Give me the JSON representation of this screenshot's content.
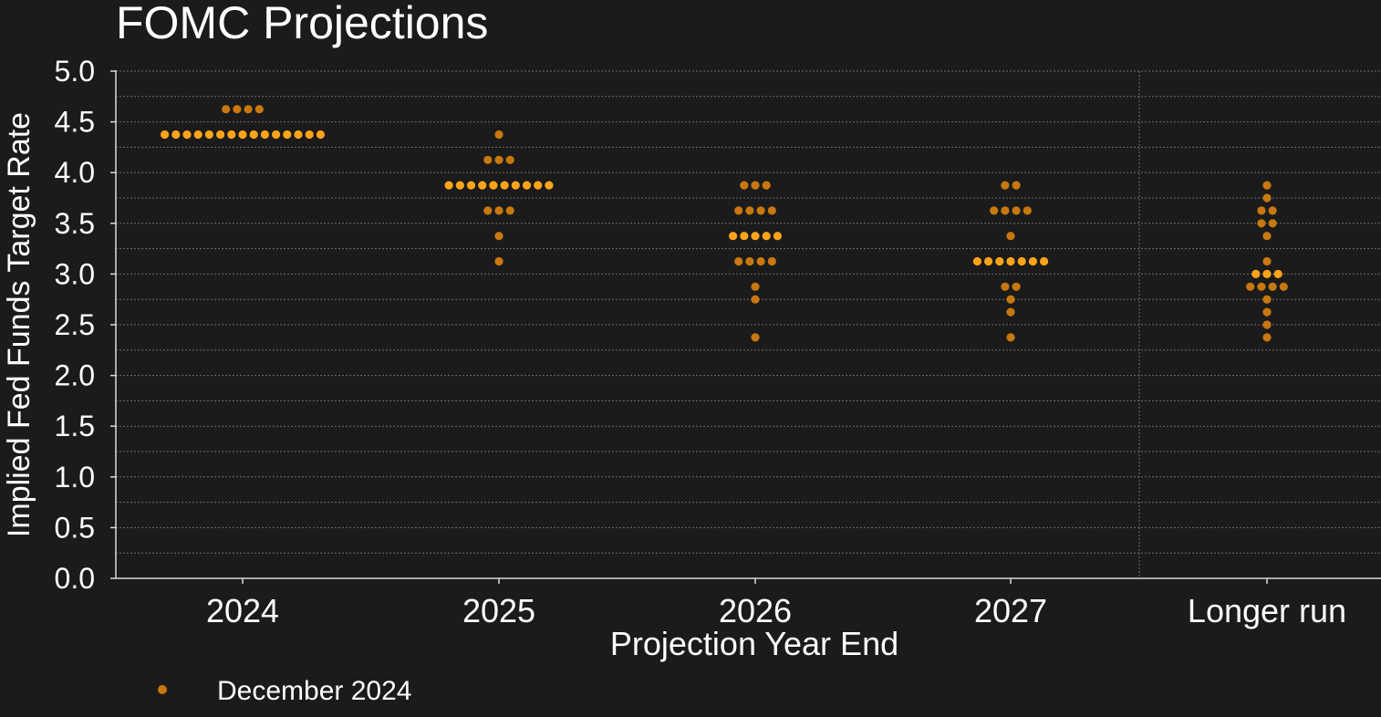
{
  "chart_data": {
    "type": "scatter",
    "title": "FOMC Projections",
    "xlabel": "Projection Year End",
    "ylabel": "Implied Fed Funds Target Rate",
    "categories": [
      "2024",
      "2025",
      "2026",
      "2027",
      "Longer run"
    ],
    "ylim": [
      0,
      5
    ],
    "yticks": [
      "0.0",
      "0.5",
      "1.0",
      "1.5",
      "2.0",
      "2.5",
      "3.0",
      "3.5",
      "4.0",
      "4.5",
      "5.0"
    ],
    "grid": true,
    "legend_position": "bottom-left",
    "series": [
      {
        "name": "December 2024",
        "color": "#c8780f",
        "median_color": "#ffa31a",
        "points": [
          {
            "category": "2024",
            "y": 4.625,
            "count": 4,
            "median": false
          },
          {
            "category": "2024",
            "y": 4.375,
            "count": 15,
            "median": true
          },
          {
            "category": "2025",
            "y": 4.375,
            "count": 1,
            "median": false
          },
          {
            "category": "2025",
            "y": 4.125,
            "count": 3,
            "median": false
          },
          {
            "category": "2025",
            "y": 3.875,
            "count": 10,
            "median": true
          },
          {
            "category": "2025",
            "y": 3.625,
            "count": 3,
            "median": false
          },
          {
            "category": "2025",
            "y": 3.375,
            "count": 1,
            "median": false
          },
          {
            "category": "2025",
            "y": 3.125,
            "count": 1,
            "median": false
          },
          {
            "category": "2026",
            "y": 3.875,
            "count": 3,
            "median": false
          },
          {
            "category": "2026",
            "y": 3.625,
            "count": 4,
            "median": false
          },
          {
            "category": "2026",
            "y": 3.375,
            "count": 5,
            "median": true
          },
          {
            "category": "2026",
            "y": 3.125,
            "count": 4,
            "median": false
          },
          {
            "category": "2026",
            "y": 2.875,
            "count": 1,
            "median": false
          },
          {
            "category": "2026",
            "y": 2.75,
            "count": 1,
            "median": false
          },
          {
            "category": "2026",
            "y": 2.375,
            "count": 1,
            "median": false
          },
          {
            "category": "2027",
            "y": 3.875,
            "count": 2,
            "median": false
          },
          {
            "category": "2027",
            "y": 3.625,
            "count": 4,
            "median": false
          },
          {
            "category": "2027",
            "y": 3.375,
            "count": 1,
            "median": false
          },
          {
            "category": "2027",
            "y": 3.125,
            "count": 7,
            "median": true
          },
          {
            "category": "2027",
            "y": 2.875,
            "count": 2,
            "median": false
          },
          {
            "category": "2027",
            "y": 2.75,
            "count": 1,
            "median": false
          },
          {
            "category": "2027",
            "y": 2.625,
            "count": 1,
            "median": false
          },
          {
            "category": "2027",
            "y": 2.375,
            "count": 1,
            "median": false
          },
          {
            "category": "Longer run",
            "y": 3.875,
            "count": 1,
            "median": false
          },
          {
            "category": "Longer run",
            "y": 3.75,
            "count": 1,
            "median": false
          },
          {
            "category": "Longer run",
            "y": 3.625,
            "count": 2,
            "median": false
          },
          {
            "category": "Longer run",
            "y": 3.5,
            "count": 2,
            "median": false
          },
          {
            "category": "Longer run",
            "y": 3.375,
            "count": 1,
            "median": false
          },
          {
            "category": "Longer run",
            "y": 3.125,
            "count": 1,
            "median": false
          },
          {
            "category": "Longer run",
            "y": 3.0,
            "count": 3,
            "median": true
          },
          {
            "category": "Longer run",
            "y": 2.875,
            "count": 4,
            "median": false
          },
          {
            "category": "Longer run",
            "y": 2.75,
            "count": 1,
            "median": false
          },
          {
            "category": "Longer run",
            "y": 2.625,
            "count": 1,
            "median": false
          },
          {
            "category": "Longer run",
            "y": 2.5,
            "count": 1,
            "median": false
          },
          {
            "category": "Longer run",
            "y": 2.375,
            "count": 1,
            "median": false
          }
        ]
      }
    ]
  }
}
